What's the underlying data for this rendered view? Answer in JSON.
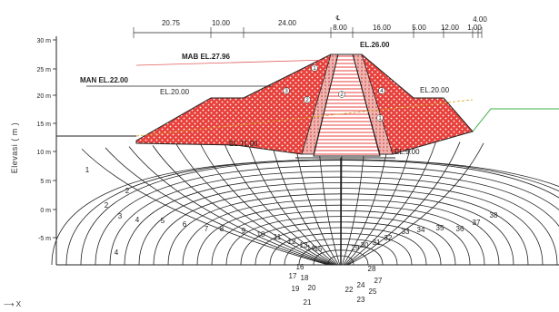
{
  "diagram": {
    "y_axis": {
      "title": "Elevasi ( m )",
      "ticks": [
        "30 m",
        "25 m",
        "20 m",
        "15 m",
        "10 m",
        "5 m",
        "0 m",
        "-5 m"
      ]
    },
    "x_hint": "X",
    "dimensions": [
      "20.75",
      "10.00",
      "24.00",
      "8.00",
      "16.00",
      "5.00",
      "12.00",
      "4.00",
      "1.00"
    ],
    "centerline_mark": "℄",
    "levels": {
      "crest": "EL.26.00",
      "mab": "MAB EL.27.96",
      "man": "MAN EL.22.00",
      "upstream_berm": "EL.20.00",
      "downstream_berm": "EL.20.00",
      "upstream_base": "EL.11.00",
      "core_base": "EL.9.00"
    },
    "zone_labels": [
      "1",
      "2",
      "3",
      "4"
    ],
    "flow_line_labels": [
      "1",
      "2",
      "3",
      "4",
      "5",
      "6",
      "7",
      "8",
      "9",
      "10",
      "11",
      "12",
      "13",
      "14",
      "15",
      "16",
      "17",
      "18",
      "19",
      "20",
      "21",
      "22",
      "23",
      "24",
      "25",
      "26",
      "27",
      "28",
      "29",
      "30",
      "31",
      "32",
      "33",
      "34",
      "35",
      "36",
      "37",
      "38"
    ],
    "colors": {
      "fill_zone": "#e8413c",
      "outline": "#222222",
      "core_fill": "#ffffff",
      "freeboard_line": "#e05a5a",
      "ground_green": "#3cb043",
      "phreatic": "#d4a017"
    }
  }
}
